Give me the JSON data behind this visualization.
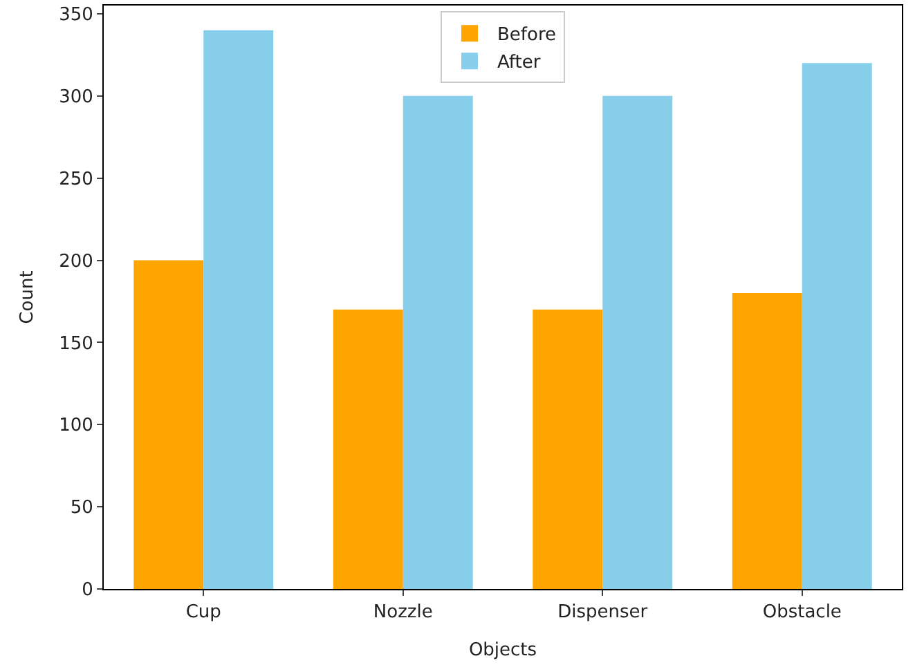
{
  "chart_data": {
    "type": "bar",
    "xlabel": "Objects",
    "ylabel": "Count",
    "categories": [
      "Cup",
      "Nozzle",
      "Dispenser",
      "Obstacle"
    ],
    "series": [
      {
        "name": "Before",
        "color": "#ffa500",
        "values": [
          200,
          170,
          170,
          180
        ]
      },
      {
        "name": "After",
        "color": "#87ceeb",
        "values": [
          340,
          300,
          300,
          320
        ]
      }
    ],
    "ylim": [
      0,
      355
    ],
    "yticks": [
      0,
      50,
      100,
      150,
      200,
      250,
      300,
      350
    ],
    "grid": false,
    "legend": "top"
  }
}
